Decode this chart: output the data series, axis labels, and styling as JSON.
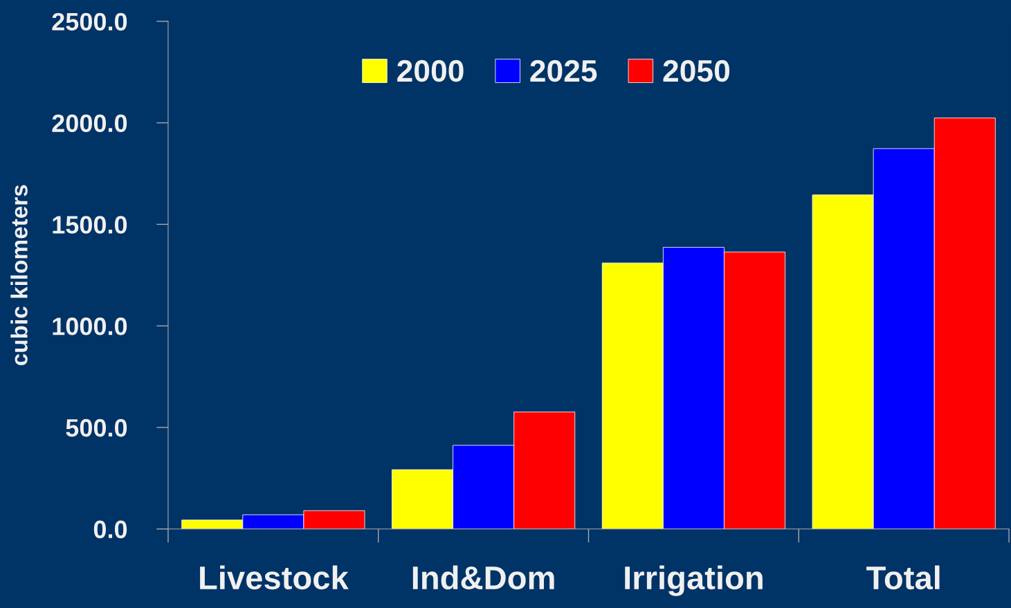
{
  "chart_data": {
    "type": "bar",
    "ylabel": "cubic kilometers",
    "categories": [
      "Livestock",
      "Ind&Dom",
      "Irrigation",
      "Total"
    ],
    "series": [
      {
        "name": "2000",
        "color": "#ffff00",
        "values": [
          44,
          292,
          1310,
          1645
        ]
      },
      {
        "name": "2025",
        "color": "#0000ff",
        "values": [
          70,
          412,
          1387,
          1873
        ]
      },
      {
        "name": "2050",
        "color": "#ff0000",
        "values": [
          90,
          576,
          1364,
          2024
        ]
      }
    ],
    "ylim": [
      0,
      2500
    ],
    "yticks": [
      {
        "value": 0,
        "label": "0.0"
      },
      {
        "value": 500,
        "label": "500.0"
      },
      {
        "value": 1000,
        "label": "1000.0"
      },
      {
        "value": 1500,
        "label": "1500.0"
      },
      {
        "value": 2000,
        "label": "2000.0"
      },
      {
        "value": 2500,
        "label": "2500.0"
      }
    ],
    "grid": false,
    "legend": "top"
  }
}
